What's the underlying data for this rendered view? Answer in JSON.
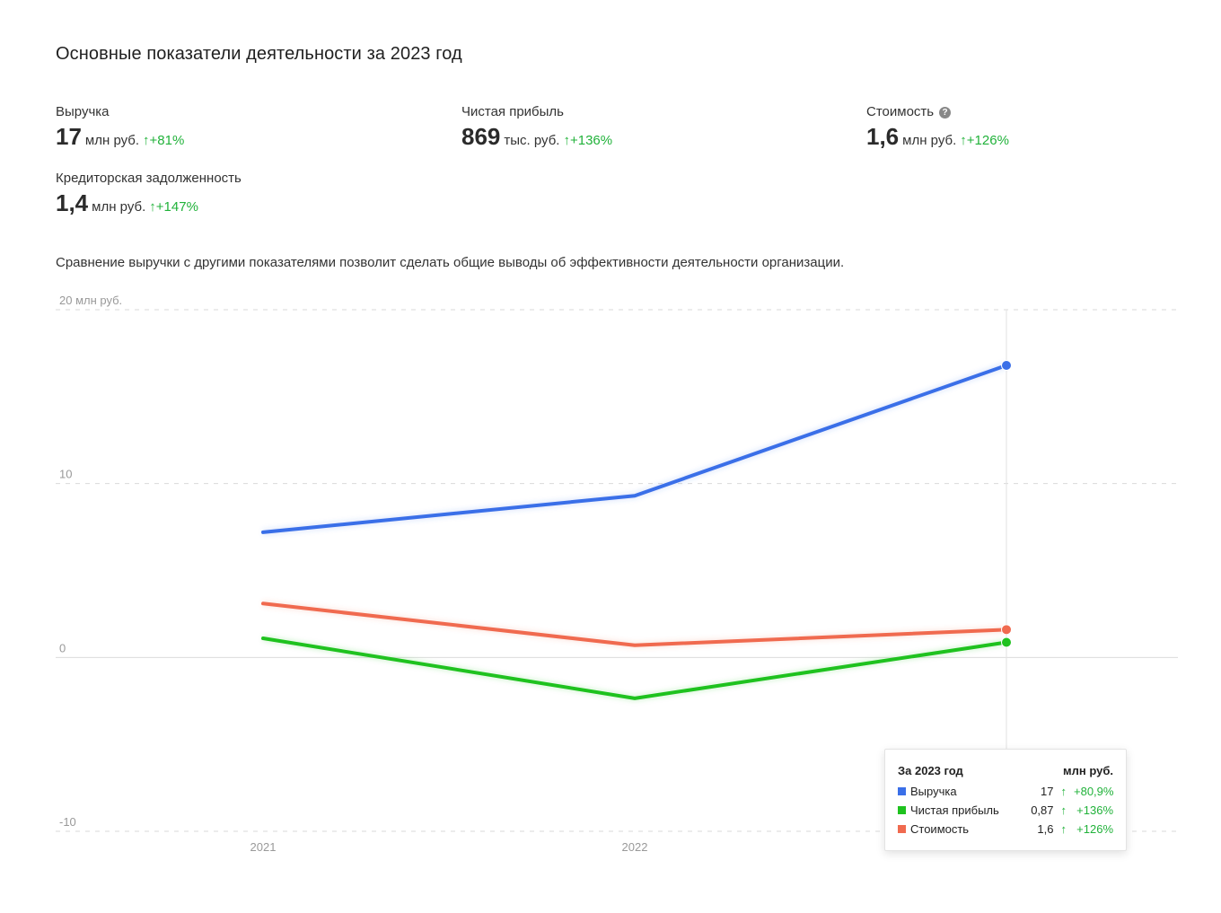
{
  "title": "Основные показатели деятельности за 2023 год",
  "metrics": [
    {
      "label": "Выручка",
      "value": "17",
      "unit": "млн руб.",
      "arrow": "↑",
      "change": "+81%"
    },
    {
      "label": "Чистая прибыль",
      "value": "869",
      "unit": "тыс. руб.",
      "arrow": "↑",
      "change": "+136%"
    },
    {
      "label": "Стоимость",
      "value": "1,6",
      "unit": "млн руб.",
      "arrow": "↑",
      "change": "+126%",
      "help_icon": "?"
    },
    {
      "label": "Кредиторская задолженность",
      "value": "1,4",
      "unit": "млн руб.",
      "arrow": "↑",
      "change": "+147%"
    }
  ],
  "description": "Сравнение выручки с другими показателями позволит сделать общие выводы об эффективности деятельности организации.",
  "colors": {
    "revenue": "#3a6fe8",
    "profit": "#1fc21f",
    "cost": "#f06a4f",
    "positive": "#21b23a",
    "grid": "#d9d9d9"
  },
  "chart_data": {
    "type": "line",
    "x": [
      "2021",
      "2022",
      "2023"
    ],
    "x_tick_labels": [
      "2021",
      "2022"
    ],
    "y_tick_labels": [
      "20 млн руб.",
      "10",
      "0",
      "-10"
    ],
    "y_ticks": [
      20,
      10,
      0,
      -10
    ],
    "ylim": [
      -10,
      20
    ],
    "grid": true,
    "series": [
      {
        "name": "Выручка",
        "color": "#3a6fe8",
        "values": [
          7.2,
          9.3,
          16.8
        ]
      },
      {
        "name": "Стоимость",
        "color": "#f06a4f",
        "values": [
          3.1,
          0.7,
          1.6
        ]
      },
      {
        "name": "Чистая прибыль",
        "color": "#1fc21f",
        "values": [
          1.1,
          -2.35,
          0.87
        ]
      }
    ],
    "highlight_index": 2
  },
  "tooltip": {
    "title": "За 2023 год",
    "unit": "млн руб.",
    "rows": [
      {
        "name": "Выручка",
        "color": "#3a6fe8",
        "value": "17",
        "arrow": "↑",
        "change": "+80,9%"
      },
      {
        "name": "Чистая прибыль",
        "color": "#1fc21f",
        "value": "0,87",
        "arrow": "↑",
        "change": "+136%"
      },
      {
        "name": "Стоимость",
        "color": "#f06a4f",
        "value": "1,6",
        "arrow": "↑",
        "change": "+126%"
      }
    ]
  }
}
